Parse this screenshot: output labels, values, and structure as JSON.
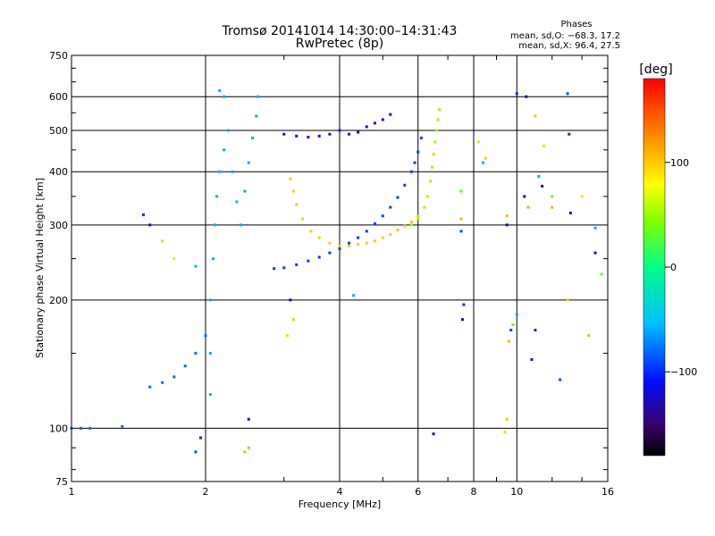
{
  "chart_data": {
    "type": "scatter",
    "title": "Tromsø 20141014 14:30:00–14:31:43",
    "subtitle": "RwPretec (8p)",
    "xlabel": "Frequency [MHz]",
    "ylabel": "Stationary phase Virtual Height [km]",
    "x_scale": "log",
    "y_scale": "log",
    "xlim": [
      1,
      16
    ],
    "ylim": [
      75,
      750
    ],
    "x_ticks": [
      "1",
      "2",
      "4",
      "6",
      "8",
      "10",
      "16"
    ],
    "x_tick_values": [
      1,
      2,
      4,
      6,
      8,
      10,
      16
    ],
    "y_ticks": [
      "750",
      "600",
      "500",
      "400",
      "300",
      "200",
      "100",
      "75"
    ],
    "y_tick_values": [
      750,
      600,
      500,
      400,
      300,
      200,
      100,
      75
    ],
    "x_minor_tick_values": [
      3,
      5,
      7,
      9,
      12,
      14
    ],
    "y_minor_tick_values": [
      80,
      90,
      150,
      250,
      350,
      450,
      550,
      650,
      700
    ],
    "grid": true,
    "stats": {
      "heading": "Phases",
      "line1": "mean, sd,O: −68.3, 17.2",
      "line2": "mean, sd,X:  96.4, 27.5"
    },
    "colorbar": {
      "label": "[deg]",
      "range": [
        -180,
        180
      ],
      "ticks": [
        "100",
        "0",
        "−100"
      ],
      "tick_values": [
        100,
        0,
        -100
      ]
    },
    "series": [
      {
        "trace": "F-region X-mode low branch (blue)",
        "phase": -95,
        "points": [
          [
            2.85,
            237
          ],
          [
            3.0,
            238
          ],
          [
            3.2,
            242
          ],
          [
            3.4,
            247
          ],
          [
            3.6,
            252
          ],
          [
            3.8,
            258
          ],
          [
            4.0,
            264
          ],
          [
            4.2,
            272
          ],
          [
            4.4,
            280
          ],
          [
            4.6,
            290
          ],
          [
            4.8,
            302
          ],
          [
            5.0,
            315
          ],
          [
            5.2,
            330
          ],
          [
            5.4,
            348
          ],
          [
            5.6,
            372
          ],
          [
            5.8,
            400
          ],
          [
            5.9,
            420
          ],
          [
            6.0,
            445
          ],
          [
            6.1,
            480
          ]
        ]
      },
      {
        "trace": "F-region O-mode arc (orange)",
        "phase": 100,
        "points": [
          [
            3.1,
            385
          ],
          [
            3.15,
            360
          ],
          [
            3.2,
            335
          ],
          [
            3.3,
            310
          ],
          [
            3.45,
            290
          ],
          [
            3.6,
            280
          ],
          [
            3.8,
            272
          ],
          [
            4.0,
            268
          ],
          [
            4.2,
            268
          ],
          [
            4.4,
            270
          ],
          [
            4.6,
            272
          ],
          [
            4.8,
            275
          ],
          [
            5.0,
            280
          ],
          [
            5.2,
            285
          ],
          [
            5.4,
            292
          ],
          [
            5.6,
            298
          ],
          [
            5.8,
            305
          ],
          [
            6.0,
            310
          ]
        ]
      },
      {
        "trace": "F-region cusp (yellow-green)",
        "phase": 50,
        "points": [
          [
            5.8,
            300
          ],
          [
            6.0,
            315
          ],
          [
            6.2,
            330
          ],
          [
            6.3,
            350
          ],
          [
            6.4,
            380
          ],
          [
            6.45,
            410
          ],
          [
            6.5,
            440
          ],
          [
            6.55,
            470
          ],
          [
            6.6,
            500
          ],
          [
            6.65,
            530
          ],
          [
            6.7,
            560
          ]
        ]
      },
      {
        "trace": "Upper F-region trace (blue)",
        "phase": -110,
        "points": [
          [
            3.0,
            490
          ],
          [
            3.2,
            485
          ],
          [
            3.4,
            482
          ],
          [
            3.6,
            485
          ],
          [
            3.8,
            490
          ],
          [
            4.0,
            500
          ],
          [
            4.2,
            490
          ],
          [
            4.4,
            495
          ],
          [
            4.6,
            510
          ],
          [
            4.8,
            520
          ],
          [
            5.0,
            530
          ],
          [
            5.2,
            545
          ]
        ]
      },
      {
        "trace": "Low-frequency vertical band (cyan)",
        "phase": -60,
        "points": [
          [
            2.05,
            120
          ],
          [
            2.05,
            150
          ],
          [
            2.05,
            200
          ],
          [
            2.08,
            250
          ],
          [
            2.1,
            300
          ],
          [
            2.12,
            350
          ],
          [
            2.15,
            400
          ],
          [
            2.2,
            450
          ],
          [
            2.25,
            500
          ],
          [
            2.3,
            400
          ],
          [
            2.35,
            340
          ],
          [
            2.4,
            300
          ],
          [
            2.45,
            360
          ],
          [
            2.5,
            420
          ],
          [
            2.55,
            480
          ],
          [
            2.6,
            540
          ],
          [
            2.62,
            600
          ],
          [
            2.2,
            600
          ],
          [
            2.15,
            620
          ]
        ]
      },
      {
        "trace": "Lower E-region rise (blue-cyan)",
        "phase": -80,
        "points": [
          [
            1.0,
            100
          ],
          [
            1.05,
            100
          ],
          [
            1.1,
            100
          ],
          [
            1.3,
            101
          ],
          [
            1.5,
            125
          ],
          [
            1.6,
            128
          ],
          [
            1.7,
            132
          ],
          [
            1.8,
            140
          ],
          [
            1.9,
            150
          ],
          [
            2.0,
            165
          ]
        ]
      },
      {
        "trace": "Scatter (mixed)",
        "phase": 0,
        "points": [
          [
            1.45,
            317
          ],
          [
            1.5,
            300
          ],
          [
            1.6,
            275
          ],
          [
            1.7,
            250
          ],
          [
            1.9,
            240
          ],
          [
            2.5,
            105
          ],
          [
            2.5,
            90
          ],
          [
            2.45,
            88
          ],
          [
            1.9,
            88
          ],
          [
            1.95,
            95
          ],
          [
            3.1,
            200
          ],
          [
            3.15,
            180
          ],
          [
            3.05,
            165
          ],
          [
            4.3,
            205
          ],
          [
            6.5,
            97
          ],
          [
            7.5,
            360
          ],
          [
            7.5,
            310
          ],
          [
            7.5,
            290
          ],
          [
            7.6,
            195
          ],
          [
            7.55,
            180
          ],
          [
            8.5,
            430
          ],
          [
            8.2,
            470
          ],
          [
            8.4,
            420
          ],
          [
            9.5,
            300
          ],
          [
            9.8,
            175
          ],
          [
            9.6,
            160
          ],
          [
            9.7,
            170
          ],
          [
            10.0,
            610
          ],
          [
            10.5,
            600
          ],
          [
            11.0,
            540
          ],
          [
            11.5,
            460
          ],
          [
            11.2,
            390
          ],
          [
            11.4,
            370
          ],
          [
            12.0,
            350
          ],
          [
            12.0,
            330
          ],
          [
            13.0,
            610
          ],
          [
            13.1,
            490
          ],
          [
            13.2,
            320
          ],
          [
            13.0,
            200
          ],
          [
            14.0,
            350
          ],
          [
            15.0,
            295
          ],
          [
            15.0,
            258
          ],
          [
            15.5,
            230
          ],
          [
            14.5,
            165
          ],
          [
            12.5,
            130
          ],
          [
            11.0,
            170
          ],
          [
            10.8,
            145
          ],
          [
            9.5,
            105
          ],
          [
            9.4,
            98
          ],
          [
            10.0,
            185
          ],
          [
            10.4,
            350
          ],
          [
            10.6,
            330
          ],
          [
            9.5,
            315
          ]
        ]
      }
    ]
  }
}
